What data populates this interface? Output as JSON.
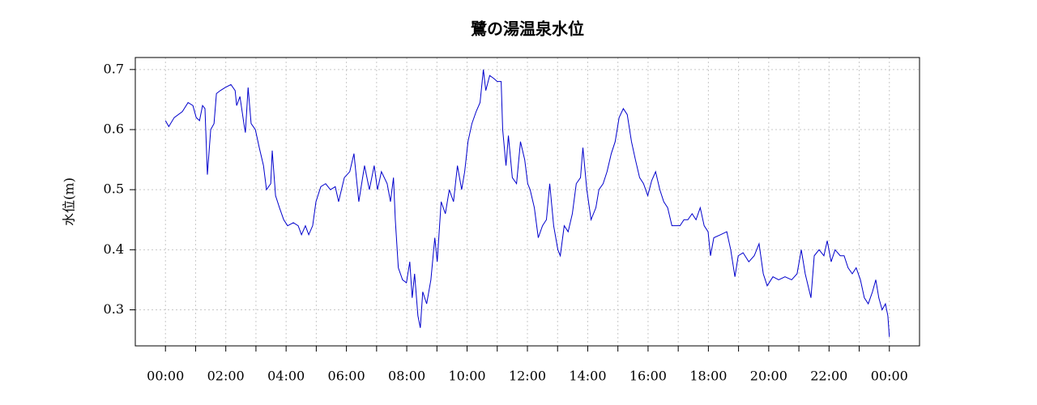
{
  "chart_data": {
    "type": "line",
    "title": "鷺の湯温泉水位",
    "ylabel": "水位(m)",
    "x": [
      0,
      0.11,
      0.29,
      0.56,
      0.75,
      0.91,
      1.02,
      1.13,
      1.23,
      1.31,
      1.39,
      1.5,
      1.61,
      1.69,
      1.82,
      1.98,
      2.17,
      2.31,
      2.36,
      2.47,
      2.6,
      2.65,
      2.74,
      2.84,
      2.98,
      3.11,
      3.25,
      3.35,
      3.49,
      3.54,
      3.65,
      3.78,
      3.92,
      4.05,
      4.24,
      4.4,
      4.51,
      4.64,
      4.75,
      4.88,
      4.99,
      5.15,
      5.31,
      5.47,
      5.63,
      5.74,
      5.93,
      6.11,
      6.25,
      6.41,
      6.6,
      6.76,
      6.92,
      7.03,
      7.16,
      7.35,
      7.46,
      7.56,
      7.62,
      7.72,
      7.86,
      7.99,
      8.1,
      8.18,
      8.26,
      8.37,
      8.45,
      8.53,
      8.66,
      8.8,
      8.93,
      9.01,
      9.14,
      9.28,
      9.41,
      9.55,
      9.68,
      9.82,
      9.92,
      10.03,
      10.16,
      10.3,
      10.43,
      10.54,
      10.62,
      10.75,
      10.89,
      11,
      11.13,
      11.18,
      11.29,
      11.37,
      11.5,
      11.64,
      11.77,
      11.91,
      12.01,
      12.09,
      12.23,
      12.36,
      12.5,
      12.63,
      12.74,
      12.87,
      13.01,
      13.09,
      13.22,
      13.35,
      13.49,
      13.62,
      13.76,
      13.84,
      13.97,
      14.11,
      14.27,
      14.37,
      14.51,
      14.64,
      14.78,
      14.91,
      15.04,
      15.18,
      15.31,
      15.45,
      15.58,
      15.72,
      15.85,
      15.99,
      16.12,
      16.25,
      16.39,
      16.52,
      16.65,
      16.79,
      16.92,
      17.06,
      17.19,
      17.32,
      17.46,
      17.59,
      17.73,
      17.86,
      17.99,
      18.07,
      18.18,
      18.4,
      18.61,
      18.74,
      18.88,
      18.99,
      19.15,
      19.34,
      19.52,
      19.68,
      19.82,
      19.95,
      20.14,
      20.33,
      20.54,
      20.76,
      20.94,
      21.08,
      21.21,
      21.4,
      21.51,
      21.67,
      21.83,
      21.94,
      22.07,
      22.2,
      22.37,
      22.5,
      22.63,
      22.77,
      22.9,
      23.04,
      23.17,
      23.3,
      23.44,
      23.55,
      23.65,
      23.76,
      23.87,
      23.95,
      24
    ],
    "series": [
      {
        "color": "#0000cc",
        "values": [
          0.615,
          0.605,
          0.62,
          0.63,
          0.645,
          0.64,
          0.62,
          0.615,
          0.64,
          0.635,
          0.525,
          0.6,
          0.61,
          0.66,
          0.665,
          0.67,
          0.675,
          0.665,
          0.64,
          0.655,
          0.61,
          0.595,
          0.67,
          0.61,
          0.6,
          0.57,
          0.54,
          0.5,
          0.51,
          0.565,
          0.49,
          0.47,
          0.45,
          0.44,
          0.445,
          0.44,
          0.425,
          0.44,
          0.425,
          0.44,
          0.48,
          0.505,
          0.51,
          0.5,
          0.505,
          0.48,
          0.52,
          0.53,
          0.56,
          0.48,
          0.54,
          0.5,
          0.54,
          0.5,
          0.53,
          0.51,
          0.48,
          0.52,
          0.45,
          0.37,
          0.35,
          0.345,
          0.38,
          0.32,
          0.36,
          0.29,
          0.27,
          0.33,
          0.31,
          0.35,
          0.42,
          0.38,
          0.48,
          0.46,
          0.5,
          0.48,
          0.54,
          0.5,
          0.53,
          0.58,
          0.61,
          0.63,
          0.645,
          0.7,
          0.665,
          0.69,
          0.685,
          0.68,
          0.68,
          0.6,
          0.54,
          0.59,
          0.52,
          0.51,
          0.58,
          0.55,
          0.51,
          0.5,
          0.47,
          0.42,
          0.44,
          0.45,
          0.51,
          0.44,
          0.4,
          0.39,
          0.44,
          0.43,
          0.46,
          0.51,
          0.52,
          0.57,
          0.5,
          0.45,
          0.47,
          0.5,
          0.51,
          0.53,
          0.56,
          0.58,
          0.62,
          0.635,
          0.625,
          0.58,
          0.55,
          0.52,
          0.51,
          0.49,
          0.515,
          0.53,
          0.5,
          0.48,
          0.47,
          0.44,
          0.44,
          0.44,
          0.45,
          0.45,
          0.46,
          0.45,
          0.47,
          0.44,
          0.43,
          0.39,
          0.42,
          0.425,
          0.43,
          0.4,
          0.355,
          0.39,
          0.395,
          0.38,
          0.39,
          0.41,
          0.36,
          0.34,
          0.355,
          0.35,
          0.355,
          0.35,
          0.36,
          0.4,
          0.36,
          0.32,
          0.39,
          0.4,
          0.39,
          0.415,
          0.38,
          0.4,
          0.39,
          0.39,
          0.37,
          0.36,
          0.37,
          0.35,
          0.32,
          0.31,
          0.33,
          0.35,
          0.32,
          0.3,
          0.31,
          0.29,
          0.255
        ]
      }
    ],
    "xlim": [
      -1,
      25
    ],
    "ylim": [
      0.24,
      0.72
    ],
    "xticks": [
      {
        "value": 0,
        "label": "00:00"
      },
      {
        "value": 2,
        "label": "02:00"
      },
      {
        "value": 4,
        "label": "04:00"
      },
      {
        "value": 6,
        "label": "06:00"
      },
      {
        "value": 8,
        "label": "08:00"
      },
      {
        "value": 10,
        "label": "10:00"
      },
      {
        "value": 12,
        "label": "12:00"
      },
      {
        "value": 14,
        "label": "14:00"
      },
      {
        "value": 16,
        "label": "16:00"
      },
      {
        "value": 18,
        "label": "18:00"
      },
      {
        "value": 20,
        "label": "20:00"
      },
      {
        "value": 22,
        "label": "22:00"
      },
      {
        "value": 24,
        "label": "00:00"
      }
    ],
    "xminor_ticks": [
      1,
      3,
      5,
      7,
      9,
      11,
      13,
      15,
      17,
      19,
      21,
      23
    ],
    "yticks": [
      0.3,
      0.4,
      0.5,
      0.6,
      0.7
    ],
    "grid": true
  }
}
